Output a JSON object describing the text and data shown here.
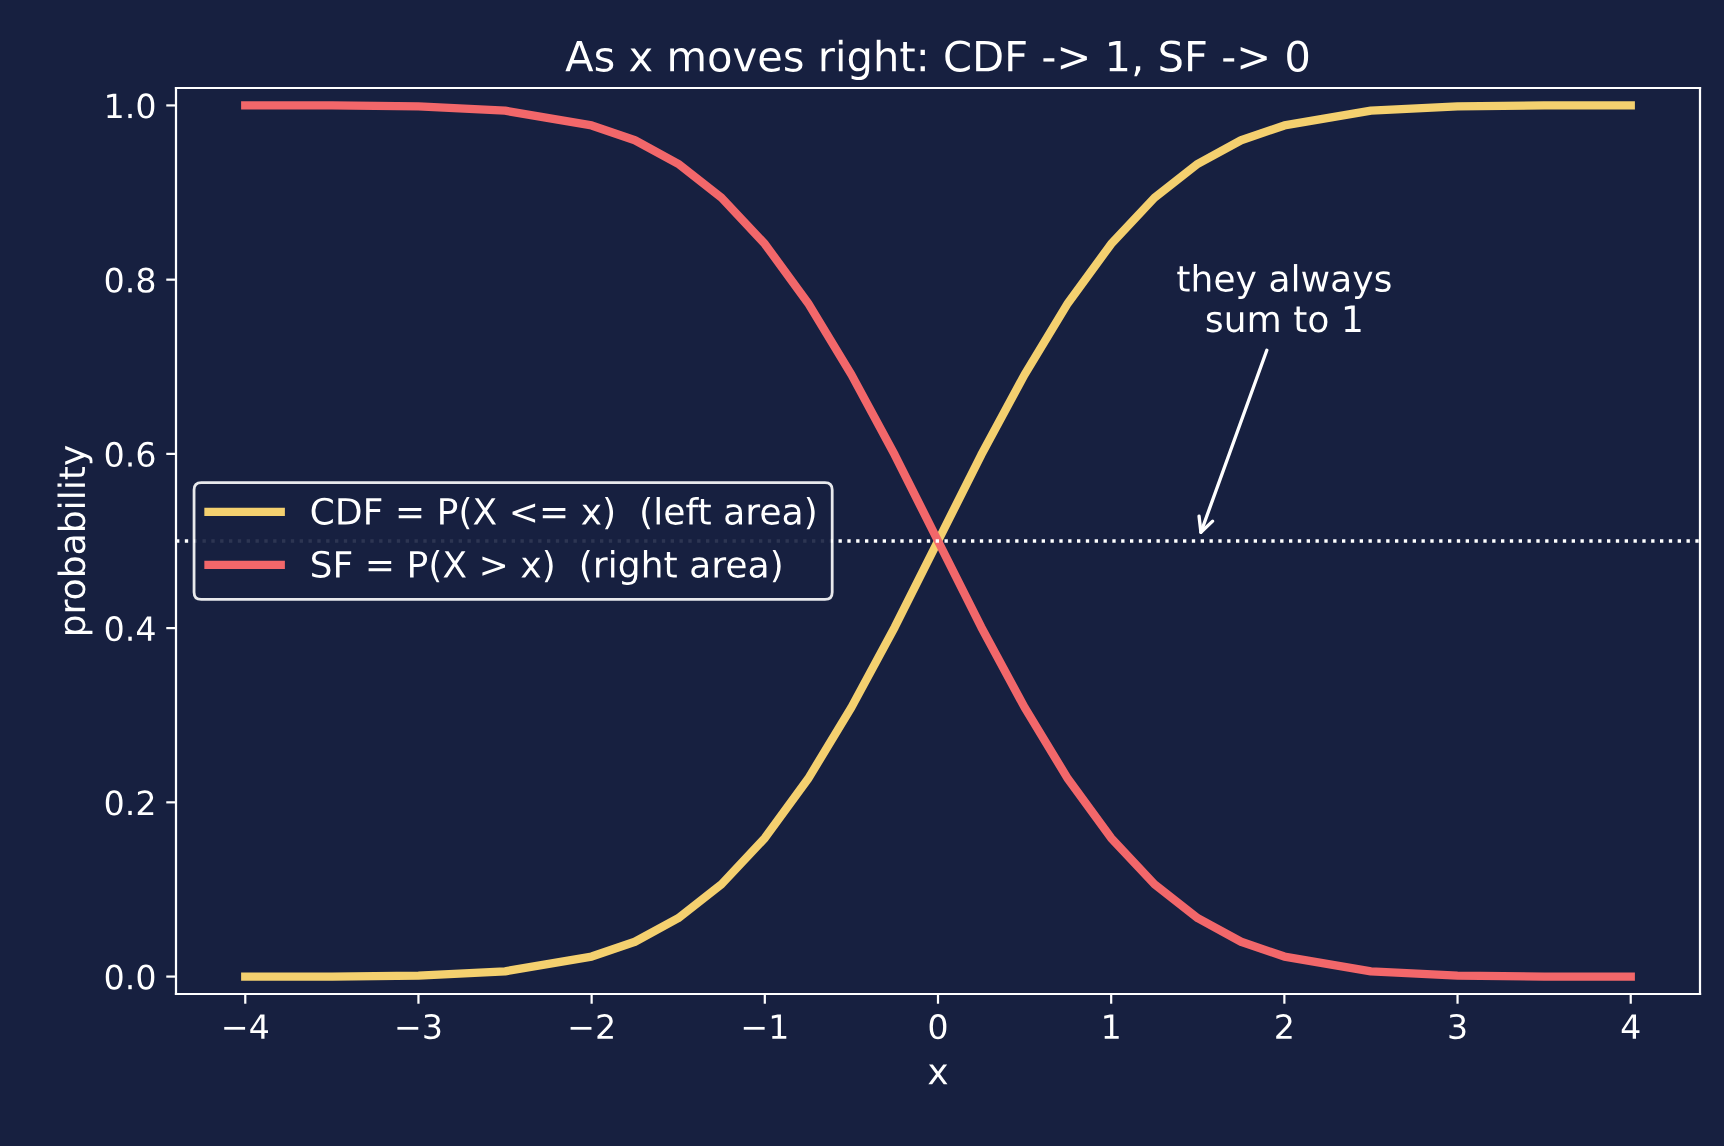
{
  "chart_data": {
    "type": "line",
    "title": "As x moves right: CDF -> 1, SF -> 0",
    "xlabel": "x",
    "ylabel": "probability",
    "x": [
      -4,
      -3.5,
      -3,
      -2.5,
      -2,
      -1.75,
      -1.5,
      -1.25,
      -1,
      -0.75,
      -0.5,
      -0.25,
      0,
      0.25,
      0.5,
      0.75,
      1,
      1.25,
      1.5,
      1.75,
      2,
      2.5,
      3,
      3.5,
      4
    ],
    "series": [
      {
        "name": "CDF = P(X <= x)  (left area)",
        "color": "#f4d06f",
        "values": [
          0.0,
          0.0,
          0.001,
          0.006,
          0.023,
          0.04,
          0.067,
          0.106,
          0.159,
          0.227,
          0.309,
          0.401,
          0.5,
          0.599,
          0.691,
          0.773,
          0.841,
          0.894,
          0.933,
          0.96,
          0.977,
          0.994,
          0.999,
          1.0,
          1.0
        ]
      },
      {
        "name": "SF = P(X > x)  (right area)",
        "color": "#f2676a",
        "values": [
          1.0,
          1.0,
          0.999,
          0.994,
          0.977,
          0.96,
          0.933,
          0.894,
          0.841,
          0.773,
          0.691,
          0.599,
          0.5,
          0.401,
          0.309,
          0.227,
          0.159,
          0.106,
          0.067,
          0.04,
          0.023,
          0.006,
          0.001,
          0.0,
          0.0
        ]
      }
    ],
    "xlim": [
      -4.4,
      4.4
    ],
    "ylim": [
      -0.02,
      1.02
    ],
    "xticks": [
      -4,
      -3,
      -2,
      -1,
      0,
      1,
      2,
      3,
      4
    ],
    "yticks": [
      {
        "value": 0,
        "label": "0.0"
      },
      {
        "value": 0.2,
        "label": "0.2"
      },
      {
        "value": 0.4,
        "label": "0.4"
      },
      {
        "value": 0.6,
        "label": "0.6"
      },
      {
        "value": 0.8,
        "label": "0.8"
      },
      {
        "value": 1.0,
        "label": "1.0"
      }
    ],
    "ref_lines": [
      {
        "axis": "y",
        "value": 0.5,
        "label": null,
        "color": "#ffffff",
        "line_style": "dotted"
      }
    ],
    "annotations": [
      {
        "text": "they always\nsum to 1",
        "x": 1.5,
        "y": 0.5
      }
    ],
    "legend": "center left",
    "grid": false
  }
}
